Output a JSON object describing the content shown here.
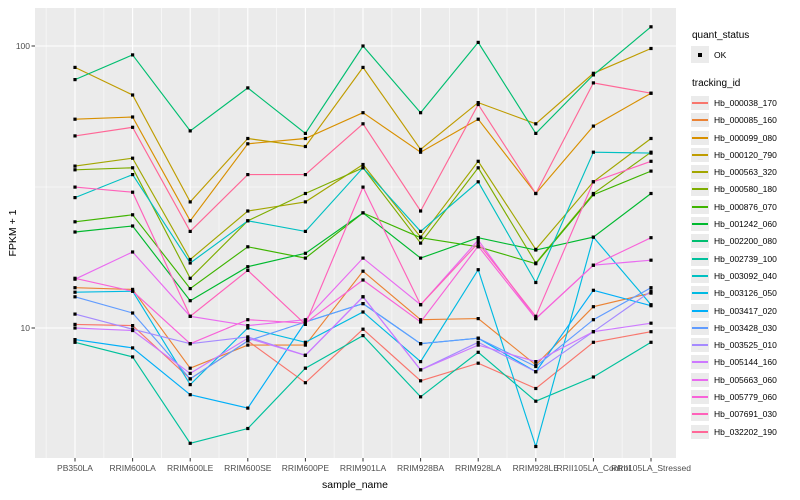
{
  "figure": {
    "y_axis": {
      "label": "FPKM + 1",
      "ticks": [
        {
          "label": "100",
          "value": 100
        },
        {
          "label": "10",
          "value": 10
        }
      ]
    },
    "x_axis": {
      "label": "sample_name"
    },
    "legend": {
      "quant_status": {
        "title": "quant_status",
        "items": [
          {
            "label": "OK",
            "marker": "black-point"
          }
        ]
      },
      "tracking_id": {
        "title": "tracking_id"
      }
    },
    "style": {
      "panel_bg": "#EBEBEB",
      "grid_major": "#FFFFFF",
      "grid_minor": "rgba(255,255,255,0.65)",
      "axis_text": "#4D4D4D",
      "tick_mark": "#333333",
      "point_color": "#000000"
    }
  },
  "chart_data": {
    "type": "line",
    "title": "",
    "xlabel": "sample_name",
    "ylabel": "FPKM + 1",
    "y_scale": "log10",
    "ylim": [
      3.4,
      136
    ],
    "y_ticks": [
      10,
      100
    ],
    "grid": "on",
    "legend_position": "right",
    "point_marker": "black-square",
    "quant_status": "OK",
    "categories": [
      "PB350LA",
      "RRIM600LA",
      "RRIM600LE",
      "RRIM600SE",
      "RRIM600PE",
      "RRIM901LA",
      "RRIM928BA",
      "RRIM928LA",
      "RRIM928LE",
      "RRII105LA_Control",
      "RRII105LA_Stressed"
    ],
    "series": [
      {
        "name": "Hb_000038_170",
        "color": "#F8766D",
        "values": [
          10.3,
          10.2,
          6.6,
          9.0,
          6.4,
          9.9,
          6.5,
          7.5,
          6.1,
          8.9,
          9.7
        ]
      },
      {
        "name": "Hb_000085_160",
        "color": "#EB8335",
        "values": [
          13.9,
          13.7,
          7.2,
          8.7,
          8.7,
          15.9,
          10.7,
          10.8,
          7.4,
          11.9,
          13.3
        ]
      },
      {
        "name": "Hb_000099_080",
        "color": "#D89000",
        "values": [
          55,
          56,
          24,
          45,
          47,
          58,
          42,
          55,
          30,
          52,
          68
        ]
      },
      {
        "name": "Hb_000120_790",
        "color": "#BF9C00",
        "values": [
          84,
          67,
          28,
          47,
          44,
          84,
          43,
          63,
          53,
          80,
          98
        ]
      },
      {
        "name": "Hb_000563_320",
        "color": "#A2A600",
        "values": [
          37.5,
          40,
          17.5,
          26,
          28,
          38,
          21,
          39,
          19,
          33,
          47
        ]
      },
      {
        "name": "Hb_000580_180",
        "color": "#7EAD00",
        "values": [
          36.4,
          37,
          15,
          24,
          30,
          37,
          20,
          37,
          17,
          30,
          42
        ]
      },
      {
        "name": "Hb_000876_070",
        "color": "#3FB400",
        "values": [
          23.8,
          25.2,
          13.8,
          19.4,
          17.7,
          25.6,
          20.9,
          19.4,
          16.9,
          29.7,
          36
        ]
      },
      {
        "name": "Hb_001242_060",
        "color": "#00B92F",
        "values": [
          21.9,
          23,
          12.5,
          16.5,
          18.4,
          25.6,
          17.7,
          20.9,
          18.9,
          21,
          30
        ]
      },
      {
        "name": "Hb_002200_080",
        "color": "#00BE70",
        "values": [
          76,
          93,
          50,
          71,
          49,
          100,
          58,
          103,
          49,
          79,
          117
        ]
      },
      {
        "name": "Hb_002739_100",
        "color": "#00C19C",
        "values": [
          8.9,
          7.9,
          3.9,
          4.4,
          7.2,
          9.4,
          5.7,
          8.2,
          5.5,
          6.7,
          8.9
        ]
      },
      {
        "name": "Hb_003092_040",
        "color": "#00C0C2",
        "values": [
          29,
          35,
          17,
          24,
          22,
          37,
          22,
          33,
          14.5,
          42,
          41.7
        ]
      },
      {
        "name": "Hb_003126_050",
        "color": "#00BAE2",
        "values": [
          13.4,
          13.5,
          6.3,
          10,
          8.9,
          11.4,
          7.6,
          16.1,
          3.8,
          21,
          12.1
        ]
      },
      {
        "name": "Hb_003417_020",
        "color": "#00AFF8",
        "values": [
          9.1,
          8.5,
          5.8,
          5.2,
          10.5,
          12.2,
          8.8,
          9.2,
          7.0,
          13.6,
          12.0
        ]
      },
      {
        "name": "Hb_003428_030",
        "color": "#619CFF",
        "values": [
          12.9,
          11.3,
          6.6,
          9.0,
          10.5,
          12.2,
          8.8,
          9.2,
          7.3,
          10.7,
          13.9
        ]
      },
      {
        "name": "Hb_003525_010",
        "color": "#A58AFF",
        "values": [
          11.2,
          9.9,
          8.8,
          9.3,
          8.0,
          12.9,
          7.1,
          8.9,
          7.0,
          9.7,
          13.5
        ]
      },
      {
        "name": "Hb_005144_160",
        "color": "#CD79FF",
        "values": [
          10.0,
          9.8,
          6.9,
          9.2,
          8.0,
          12.9,
          7.1,
          8.7,
          7.6,
          9.7,
          10.4
        ]
      },
      {
        "name": "Hb_005663_060",
        "color": "#E96BF0",
        "values": [
          14.9,
          18.6,
          11.0,
          10.2,
          10.7,
          17.7,
          12.1,
          20.5,
          10.8,
          16.7,
          17.4
        ]
      },
      {
        "name": "Hb_005779_060",
        "color": "#F863D9",
        "values": [
          15.0,
          13.5,
          8.8,
          10.7,
          10.4,
          14.8,
          10.5,
          19.5,
          10.8,
          16.7,
          20.9
        ]
      },
      {
        "name": "Hb_007691_030",
        "color": "#FF61BA",
        "values": [
          31.6,
          30.3,
          11.0,
          16.0,
          10.3,
          31.6,
          12.1,
          20.0,
          11.0,
          33,
          39
        ]
      },
      {
        "name": "Hb_032202_190",
        "color": "#FF6797",
        "values": [
          48,
          51.5,
          22,
          35,
          35,
          53,
          26,
          62,
          30,
          74,
          68
        ]
      }
    ]
  }
}
